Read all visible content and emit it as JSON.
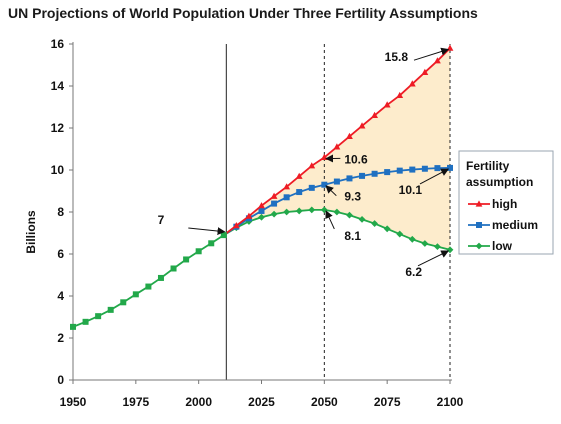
{
  "chart_data": {
    "type": "line",
    "title": "UN Projections of World Population Under Three Fertility Assumptions",
    "ylabel": "Billions",
    "xlabel": "",
    "xlim": [
      1950,
      2100
    ],
    "ylim": [
      0,
      16
    ],
    "x_ticks": [
      "1950",
      "1975",
      "2000",
      "2025",
      "2050",
      "2075",
      "2100"
    ],
    "y_ticks": [
      "0",
      "2",
      "4",
      "6",
      "8",
      "10",
      "12",
      "14",
      "16"
    ],
    "grid": false,
    "legend": {
      "title_lines": [
        "Fertility",
        "assumption"
      ],
      "placement": "right"
    },
    "historical": {
      "color": "#22a84a",
      "x": [
        1950,
        1955,
        1960,
        1965,
        1970,
        1975,
        1980,
        1985,
        1990,
        1995,
        2000,
        2005,
        2010
      ],
      "y": [
        2.53,
        2.77,
        3.04,
        3.34,
        3.7,
        4.08,
        4.45,
        4.86,
        5.31,
        5.74,
        6.13,
        6.51,
        6.9
      ]
    },
    "projection_x": [
      2010,
      2015,
      2020,
      2025,
      2030,
      2035,
      2040,
      2045,
      2050,
      2055,
      2060,
      2065,
      2070,
      2075,
      2080,
      2085,
      2090,
      2095,
      2100
    ],
    "series": [
      {
        "name": "high",
        "color": "#ee1c25",
        "marker": "triangle",
        "values": [
          6.9,
          7.35,
          7.8,
          8.3,
          8.75,
          9.2,
          9.7,
          10.2,
          10.6,
          11.1,
          11.6,
          12.1,
          12.6,
          13.1,
          13.55,
          14.1,
          14.65,
          15.2,
          15.8
        ]
      },
      {
        "name": "medium",
        "color": "#1f70c1",
        "marker": "square",
        "values": [
          6.9,
          7.3,
          7.7,
          8.05,
          8.4,
          8.7,
          8.95,
          9.15,
          9.3,
          9.45,
          9.6,
          9.72,
          9.82,
          9.9,
          9.97,
          10.02,
          10.06,
          10.09,
          10.1
        ]
      },
      {
        "name": "low",
        "color": "#22a84a",
        "marker": "diamond",
        "values": [
          6.9,
          7.25,
          7.55,
          7.75,
          7.9,
          8.0,
          8.05,
          8.1,
          8.1,
          8.0,
          7.85,
          7.65,
          7.45,
          7.2,
          6.95,
          6.7,
          6.5,
          6.35,
          6.2
        ]
      }
    ],
    "vertical_lines": [
      {
        "x": 2011,
        "style": "solid"
      },
      {
        "x": 2050,
        "style": "dashed"
      },
      {
        "x": 2100,
        "style": "dashed"
      }
    ],
    "fill_between": {
      "upper": "high",
      "lower": "low",
      "from_x": 2010,
      "to_x": 2100,
      "color": "#fdeccc"
    },
    "annotations": [
      {
        "text": "7",
        "value_x": 2011,
        "value_y": 7.0
      },
      {
        "text": "15.8",
        "value_x": 2100,
        "value_y": 15.8
      },
      {
        "text": "10.6",
        "value_x": 2050,
        "value_y": 10.6
      },
      {
        "text": "9.3",
        "value_x": 2050,
        "value_y": 9.3
      },
      {
        "text": "8.1",
        "value_x": 2050,
        "value_y": 8.1
      },
      {
        "text": "10.1",
        "value_x": 2100,
        "value_y": 10.1
      },
      {
        "text": "6.2",
        "value_x": 2100,
        "value_y": 6.2
      }
    ]
  }
}
